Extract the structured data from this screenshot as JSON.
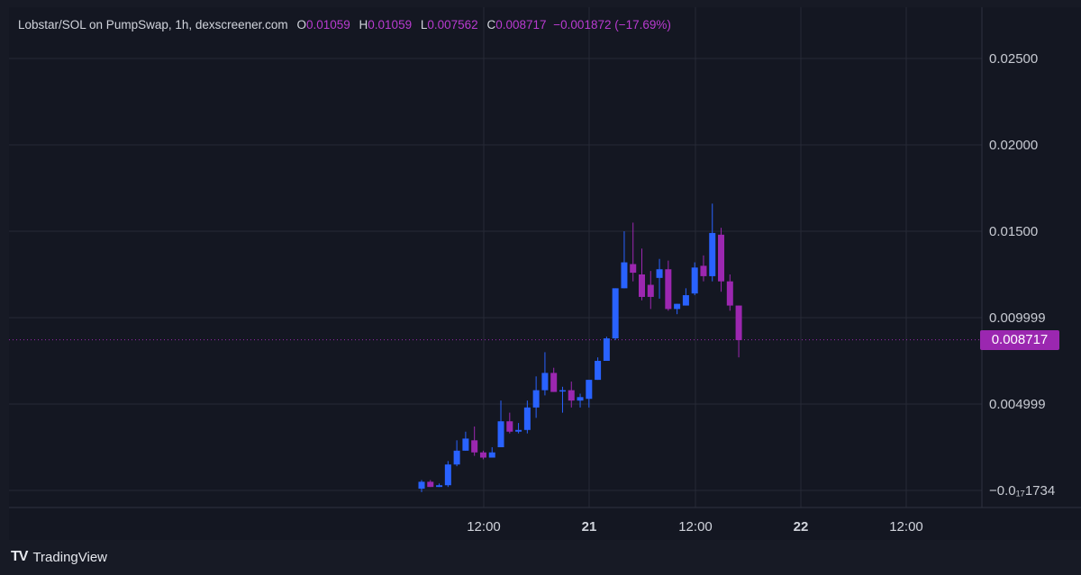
{
  "header": {
    "pair": "Lobstar/SOL on PumpSwap, 1h, dexscreener.com",
    "open_label": "O",
    "open_value": "0.01059",
    "high_label": "H",
    "high_value": "0.01059",
    "low_label": "L",
    "low_value": "0.007562",
    "close_label": "C",
    "close_value": "0.008717",
    "change": "−0.001872 (−17.69%)"
  },
  "footer": {
    "brand": "TradingView",
    "logo": "TV"
  },
  "current_price": {
    "label": "0.008717",
    "value": 0.008717,
    "color": "#9b27b0"
  },
  "colors": {
    "up": "#2962ff",
    "down": "#9c27b0",
    "grid": "#262a36",
    "background": "#141722"
  },
  "chart_data": {
    "type": "candlestick",
    "title": "",
    "y_ticks": [
      {
        "value": 0.025,
        "label": "0.02500"
      },
      {
        "value": 0.02,
        "label": "0.02000"
      },
      {
        "value": 0.015,
        "label": "0.01500"
      },
      {
        "value": 0.01,
        "label": "0.009999"
      },
      {
        "value": 0.005,
        "label": "0.004999"
      },
      {
        "value": 0.0,
        "label": "−0.0₁₇1734"
      }
    ],
    "x_ticks": [
      "12:00",
      "21",
      "12:00",
      "22",
      "12:00"
    ],
    "ylim": [
      -0.0012,
      0.0275
    ],
    "grid": true,
    "candles": [
      {
        "o": 0.0001,
        "h": 0.0006,
        "l": -0.0001,
        "c": 0.0005
      },
      {
        "o": 0.0005,
        "h": 0.0006,
        "l": 0.0002,
        "c": 0.0002
      },
      {
        "o": 0.0002,
        "h": 0.0004,
        "l": 0.0002,
        "c": 0.0003
      },
      {
        "o": 0.0003,
        "h": 0.0017,
        "l": 0.0002,
        "c": 0.0015
      },
      {
        "o": 0.0015,
        "h": 0.0029,
        "l": 0.0014,
        "c": 0.0023
      },
      {
        "o": 0.0023,
        "h": 0.0034,
        "l": 0.0023,
        "c": 0.003
      },
      {
        "o": 0.0029,
        "h": 0.0037,
        "l": 0.002,
        "c": 0.0022
      },
      {
        "o": 0.0022,
        "h": 0.0023,
        "l": 0.0018,
        "c": 0.0019
      },
      {
        "o": 0.0019,
        "h": 0.0025,
        "l": 0.0019,
        "c": 0.0022
      },
      {
        "o": 0.0025,
        "h": 0.0052,
        "l": 0.0025,
        "c": 0.004
      },
      {
        "o": 0.004,
        "h": 0.0045,
        "l": 0.0033,
        "c": 0.0034
      },
      {
        "o": 0.0034,
        "h": 0.0039,
        "l": 0.0033,
        "c": 0.0035
      },
      {
        "o": 0.0035,
        "h": 0.0052,
        "l": 0.0033,
        "c": 0.0048
      },
      {
        "o": 0.0048,
        "h": 0.0066,
        "l": 0.0042,
        "c": 0.0058
      },
      {
        "o": 0.0058,
        "h": 0.008,
        "l": 0.0055,
        "c": 0.0068
      },
      {
        "o": 0.0068,
        "h": 0.0071,
        "l": 0.0057,
        "c": 0.0057
      },
      {
        "o": 0.0058,
        "h": 0.006,
        "l": 0.0045,
        "c": 0.0058
      },
      {
        "o": 0.0058,
        "h": 0.0063,
        "l": 0.0048,
        "c": 0.0052
      },
      {
        "o": 0.0052,
        "h": 0.0056,
        "l": 0.0048,
        "c": 0.0054
      },
      {
        "o": 0.0053,
        "h": 0.0064,
        "l": 0.0048,
        "c": 0.0064
      },
      {
        "o": 0.0064,
        "h": 0.0077,
        "l": 0.0064,
        "c": 0.0075
      },
      {
        "o": 0.0075,
        "h": 0.0089,
        "l": 0.0075,
        "c": 0.0088
      },
      {
        "o": 0.0088,
        "h": 0.0117,
        "l": 0.0087,
        "c": 0.0117
      },
      {
        "o": 0.0117,
        "h": 0.015,
        "l": 0.0117,
        "c": 0.0132
      },
      {
        "o": 0.0131,
        "h": 0.0155,
        "l": 0.0121,
        "c": 0.0126
      },
      {
        "o": 0.0125,
        "h": 0.014,
        "l": 0.011,
        "c": 0.0112
      },
      {
        "o": 0.0119,
        "h": 0.0127,
        "l": 0.0105,
        "c": 0.0112
      },
      {
        "o": 0.0123,
        "h": 0.0134,
        "l": 0.0111,
        "c": 0.0128
      },
      {
        "o": 0.0128,
        "h": 0.0133,
        "l": 0.0104,
        "c": 0.0105
      },
      {
        "o": 0.0105,
        "h": 0.0108,
        "l": 0.0102,
        "c": 0.0108
      },
      {
        "o": 0.0107,
        "h": 0.0117,
        "l": 0.0107,
        "c": 0.0113
      },
      {
        "o": 0.0114,
        "h": 0.0132,
        "l": 0.0113,
        "c": 0.0129
      },
      {
        "o": 0.013,
        "h": 0.0136,
        "l": 0.0121,
        "c": 0.0124
      },
      {
        "o": 0.0124,
        "h": 0.0166,
        "l": 0.0121,
        "c": 0.0149
      },
      {
        "o": 0.0148,
        "h": 0.0152,
        "l": 0.0115,
        "c": 0.0121
      },
      {
        "o": 0.0121,
        "h": 0.0125,
        "l": 0.0104,
        "c": 0.0107
      },
      {
        "o": 0.0107,
        "h": 0.0107,
        "l": 0.0077,
        "c": 0.0087
      }
    ]
  }
}
